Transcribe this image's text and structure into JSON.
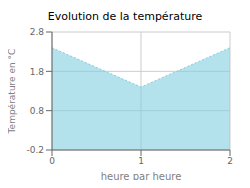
{
  "chart_data": {
    "type": "area",
    "title": "Evolution de la température",
    "xlabel": "heure par heure",
    "ylabel": "Température en °C",
    "x": [
      0,
      1,
      2
    ],
    "values": [
      2.4,
      1.4,
      2.4
    ],
    "xlim": [
      0,
      2
    ],
    "ylim": [
      -0.2,
      2.8
    ],
    "xticks": [
      0,
      1,
      2
    ],
    "yticks": [
      -0.2,
      0.8,
      1.8,
      2.8
    ],
    "color": "#80cfe0",
    "line_style": "dotted",
    "grid": true
  }
}
